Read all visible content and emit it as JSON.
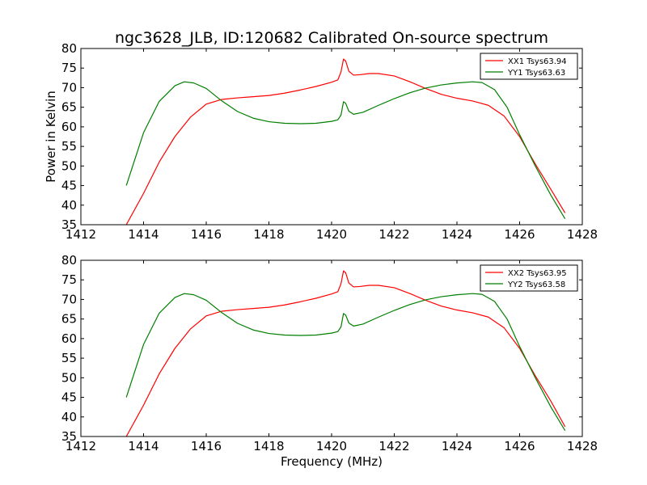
{
  "figure": {
    "title": "ngc3628_JLB, ID:120682 Calibrated On-source spectrum"
  },
  "colors": {
    "xx": "#ff0000",
    "yy": "#007f00"
  },
  "chart_data": [
    {
      "type": "line",
      "title": "ngc3628_JLB, ID:120682 Calibrated On-source spectrum",
      "xlabel": "",
      "ylabel": "Power in Kelvin",
      "xlim": [
        1412,
        1428
      ],
      "ylim": [
        35,
        80
      ],
      "xticks": [
        "1412",
        "1414",
        "1416",
        "1418",
        "1420",
        "1422",
        "1424",
        "1426",
        "1428"
      ],
      "yticks": [
        "35",
        "40",
        "45",
        "50",
        "55",
        "60",
        "65",
        "70",
        "75",
        "80"
      ],
      "legend_position": "top-right",
      "series": [
        {
          "name": "XX1 Tsys63.94",
          "color": "#ff0000",
          "x": [
            1413.45,
            1414.0,
            1414.5,
            1415.0,
            1415.5,
            1416.0,
            1416.5,
            1417.0,
            1417.5,
            1418.0,
            1418.5,
            1419.0,
            1419.5,
            1420.0,
            1420.2,
            1420.3,
            1420.38,
            1420.45,
            1420.55,
            1420.7,
            1420.9,
            1421.2,
            1421.5,
            1422.0,
            1422.5,
            1423.0,
            1423.5,
            1424.0,
            1424.5,
            1425.0,
            1425.5,
            1426.0,
            1426.5,
            1427.0,
            1427.45
          ],
          "y": [
            35.0,
            43.0,
            51.0,
            57.5,
            62.5,
            65.8,
            67.0,
            67.4,
            67.7,
            68.0,
            68.6,
            69.4,
            70.3,
            71.4,
            72.0,
            74.0,
            77.3,
            76.8,
            74.2,
            73.2,
            73.3,
            73.6,
            73.6,
            73.0,
            71.5,
            69.8,
            68.3,
            67.3,
            66.6,
            65.5,
            62.8,
            57.5,
            50.5,
            44.0,
            38.0
          ]
        },
        {
          "name": "YY1 Tsys63.63",
          "color": "#007f00",
          "x": [
            1413.45,
            1414.0,
            1414.5,
            1415.0,
            1415.3,
            1415.6,
            1416.0,
            1416.5,
            1417.0,
            1417.5,
            1418.0,
            1418.5,
            1419.0,
            1419.5,
            1420.0,
            1420.2,
            1420.3,
            1420.38,
            1420.45,
            1420.55,
            1420.7,
            1421.0,
            1421.5,
            1422.0,
            1422.5,
            1423.0,
            1423.5,
            1424.0,
            1424.5,
            1424.8,
            1425.2,
            1425.6,
            1426.0,
            1426.5,
            1427.0,
            1427.45
          ],
          "y": [
            45.0,
            58.5,
            66.5,
            70.5,
            71.5,
            71.2,
            69.8,
            66.6,
            63.9,
            62.2,
            61.3,
            60.9,
            60.8,
            60.9,
            61.4,
            61.8,
            63.0,
            66.4,
            66.0,
            64.0,
            63.2,
            63.7,
            65.5,
            67.2,
            68.7,
            69.9,
            70.7,
            71.2,
            71.5,
            71.3,
            69.5,
            65.0,
            58.0,
            50.0,
            42.5,
            36.5
          ]
        }
      ]
    },
    {
      "type": "line",
      "title": "",
      "xlabel": "Frequency (MHz)",
      "ylabel": "",
      "xlim": [
        1412,
        1428
      ],
      "ylim": [
        35,
        80
      ],
      "xticks": [
        "1412",
        "1414",
        "1416",
        "1418",
        "1420",
        "1422",
        "1424",
        "1426",
        "1428"
      ],
      "yticks": [
        "35",
        "40",
        "45",
        "50",
        "55",
        "60",
        "65",
        "70",
        "75",
        "80"
      ],
      "legend_position": "top-right",
      "series": [
        {
          "name": "XX2 Tsys63.95",
          "color": "#ff0000",
          "x": [
            1413.45,
            1414.0,
            1414.5,
            1415.0,
            1415.5,
            1416.0,
            1416.5,
            1417.0,
            1417.5,
            1418.0,
            1418.5,
            1419.0,
            1419.5,
            1420.0,
            1420.2,
            1420.3,
            1420.38,
            1420.45,
            1420.55,
            1420.7,
            1420.9,
            1421.2,
            1421.5,
            1422.0,
            1422.5,
            1423.0,
            1423.5,
            1424.0,
            1424.5,
            1425.0,
            1425.5,
            1426.0,
            1426.5,
            1427.0,
            1427.45
          ],
          "y": [
            35.0,
            43.0,
            51.0,
            57.5,
            62.5,
            65.8,
            67.0,
            67.4,
            67.7,
            68.0,
            68.6,
            69.4,
            70.3,
            71.4,
            72.0,
            74.0,
            77.3,
            76.8,
            74.2,
            73.2,
            73.3,
            73.6,
            73.6,
            73.0,
            71.5,
            69.8,
            68.3,
            67.3,
            66.6,
            65.5,
            62.8,
            57.5,
            50.5,
            44.0,
            37.5
          ]
        },
        {
          "name": "YY2 Tsys63.58",
          "color": "#007f00",
          "x": [
            1413.45,
            1414.0,
            1414.5,
            1415.0,
            1415.3,
            1415.6,
            1416.0,
            1416.5,
            1417.0,
            1417.5,
            1418.0,
            1418.5,
            1419.0,
            1419.5,
            1420.0,
            1420.2,
            1420.3,
            1420.38,
            1420.45,
            1420.55,
            1420.7,
            1421.0,
            1421.5,
            1422.0,
            1422.5,
            1423.0,
            1423.5,
            1424.0,
            1424.5,
            1424.8,
            1425.2,
            1425.6,
            1426.0,
            1426.5,
            1427.0,
            1427.45
          ],
          "y": [
            45.0,
            58.5,
            66.5,
            70.5,
            71.5,
            71.2,
            69.8,
            66.6,
            63.9,
            62.2,
            61.3,
            60.9,
            60.8,
            60.9,
            61.4,
            61.8,
            63.0,
            66.4,
            66.0,
            64.0,
            63.2,
            63.7,
            65.5,
            67.2,
            68.7,
            69.9,
            70.7,
            71.2,
            71.5,
            71.3,
            69.5,
            65.0,
            58.0,
            50.0,
            42.5,
            36.5
          ]
        }
      ]
    }
  ]
}
